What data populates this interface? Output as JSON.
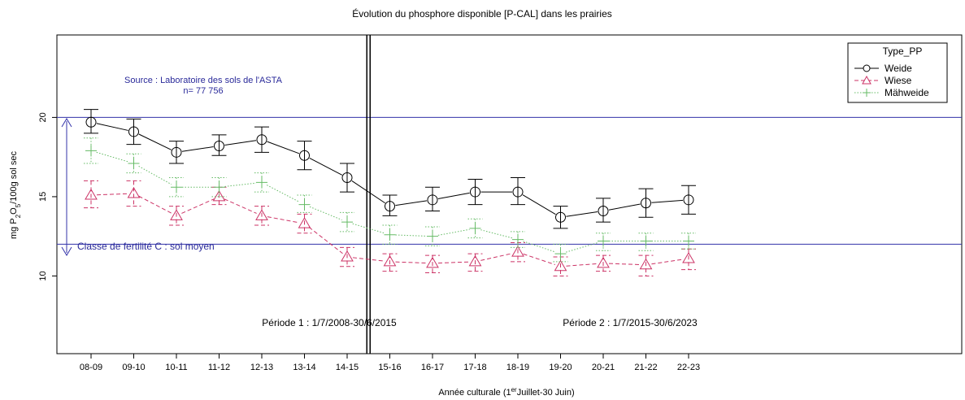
{
  "chart_data": {
    "type": "line",
    "title": "Évolution du phosphore disponible  [P-CAL] dans les prairies",
    "xlabel": {
      "pre": "Année culturale (1",
      "sup": "er",
      "post": "Juillet-30 Juin)"
    },
    "ylabel": {
      "pre": "mg P",
      "sub1": "2",
      "mid": "O",
      "sub2": "5",
      "post": "/100g sol sec"
    },
    "categories": [
      "08-09",
      "09-10",
      "10-11",
      "11-12",
      "12-13",
      "13-14",
      "14-15",
      "15-16",
      "16-17",
      "17-18",
      "18-19",
      "19-20",
      "20-21",
      "21-22",
      "22-23"
    ],
    "y_ticks": [
      10,
      15,
      20
    ],
    "ylim": [
      5.1,
      25.2
    ],
    "legend": {
      "title": "Type_PP",
      "position": "top-right",
      "entries": [
        "Weide",
        "Wiese",
        "Mähweide"
      ]
    },
    "series": [
      {
        "name": "Weide",
        "color": "#000000",
        "marker": "circle",
        "dash": "solid",
        "values": [
          19.7,
          19.1,
          17.8,
          18.2,
          18.6,
          17.6,
          16.2,
          14.4,
          14.8,
          15.3,
          15.3,
          13.7,
          14.1,
          14.6,
          14.8
        ],
        "lower": [
          19.0,
          18.3,
          17.1,
          17.6,
          17.8,
          16.7,
          15.3,
          13.8,
          14.1,
          14.5,
          14.5,
          13.0,
          13.4,
          13.7,
          13.9
        ],
        "upper": [
          20.5,
          19.9,
          18.5,
          18.9,
          19.4,
          18.5,
          17.1,
          15.1,
          15.6,
          16.1,
          16.2,
          14.4,
          14.9,
          15.5,
          15.7
        ]
      },
      {
        "name": "Wiese",
        "color": "#cc3366",
        "marker": "triangle",
        "dash": "dashed",
        "values": [
          15.1,
          15.2,
          13.8,
          15.0,
          13.8,
          13.3,
          11.2,
          10.9,
          10.8,
          10.9,
          11.5,
          10.6,
          10.8,
          10.7,
          11.1
        ],
        "lower": [
          14.3,
          14.4,
          13.2,
          14.5,
          13.2,
          12.7,
          10.6,
          10.3,
          10.2,
          10.3,
          10.9,
          10.0,
          10.3,
          10.0,
          10.4
        ],
        "upper": [
          16.0,
          16.0,
          14.4,
          15.6,
          14.4,
          13.9,
          11.8,
          11.4,
          11.3,
          11.4,
          12.1,
          11.2,
          11.3,
          11.3,
          11.7
        ]
      },
      {
        "name": "Mähweide",
        "color": "#66bb66",
        "marker": "plus",
        "dash": "dotted",
        "values": [
          17.9,
          17.1,
          15.6,
          15.6,
          15.9,
          14.5,
          13.4,
          12.6,
          12.5,
          13.0,
          12.3,
          11.4,
          12.2,
          12.2,
          12.2
        ],
        "lower": [
          17.1,
          16.5,
          15.0,
          15.0,
          15.3,
          14.0,
          12.8,
          12.0,
          11.9,
          12.4,
          11.8,
          10.9,
          11.6,
          11.6,
          11.7
        ],
        "upper": [
          18.7,
          17.7,
          16.2,
          16.2,
          16.5,
          15.1,
          14.0,
          13.2,
          13.1,
          13.6,
          12.8,
          12.0,
          12.7,
          12.7,
          12.7
        ]
      }
    ],
    "reference_lines": [
      20,
      12
    ],
    "reference_color": "#3333aa",
    "annotations": {
      "source_line1": "Source : Laboratoire des sols de l'ASTA",
      "source_line2": "n= 77 756",
      "fertility_class": "Classe de fertilité C : sol moyen",
      "period1": "Période  1 : 1/7/2008-30/6/2015",
      "period2": "Période  2 : 1/7/2015-30/6/2023"
    },
    "period_divider_after_category": "14-15"
  }
}
